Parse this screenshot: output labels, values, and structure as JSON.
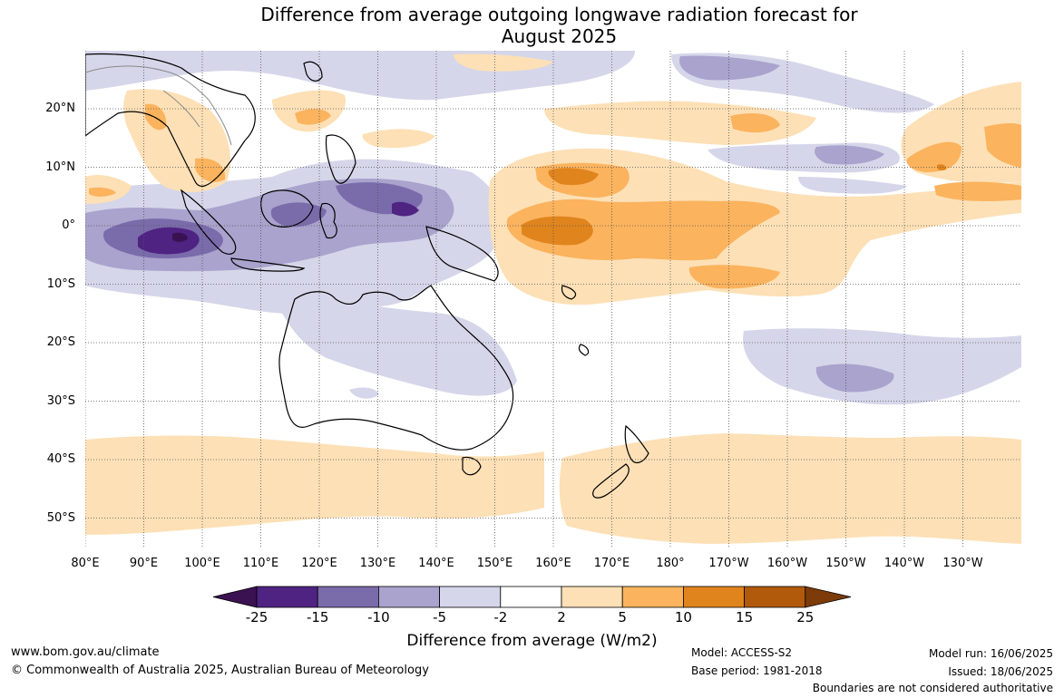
{
  "title_line1": "Difference from average outgoing longwave radiation forecast for",
  "title_line2": "August 2025",
  "lat_ticks": [
    "20°N",
    "10°N",
    "0°",
    "10°S",
    "20°S",
    "30°S",
    "40°S",
    "50°S"
  ],
  "lon_ticks": [
    "80°E",
    "90°E",
    "100°E",
    "110°E",
    "120°E",
    "130°E",
    "140°E",
    "150°E",
    "160°E",
    "170°E",
    "180°",
    "170°W",
    "160°W",
    "150°W",
    "140°W",
    "130°W"
  ],
  "colorbar": {
    "labels": [
      "-25",
      "-15",
      "-10",
      "-5",
      "-2",
      "2",
      "5",
      "10",
      "15",
      "25"
    ],
    "colors": [
      "#3a1252",
      "#4f2382",
      "#7a6bab",
      "#a9a3cd",
      "#d6d6ea",
      "#ffffff",
      "#fde0b6",
      "#fbb35e",
      "#e0841d",
      "#b15a0c",
      "#7d3b0a"
    ],
    "title": "Difference from average (W/m2)"
  },
  "footer": {
    "website": "www.bom.gov.au/climate",
    "copyright": "© Commonwealth of Australia 2025, Australian Bureau of Meteorology",
    "model": "Model: ACCESS-S2",
    "base_period": "Base period: 1981-2018",
    "model_run": "Model run: 16/06/2025",
    "issued": "Issued: 18/06/2025",
    "disclaimer": "Boundaries are not considered authoritative"
  }
}
